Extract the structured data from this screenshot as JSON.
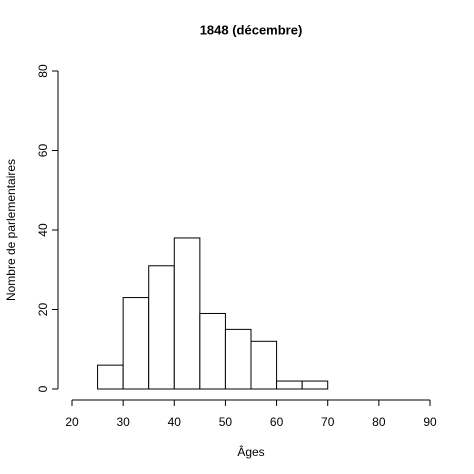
{
  "chart_data": {
    "type": "histogram",
    "title": "1848 (décembre)",
    "x_label": "Âges",
    "y_label": "Nombre de parlementaires",
    "bins": [
      20,
      25,
      30,
      35,
      40,
      45,
      50,
      55,
      60,
      65,
      70,
      75,
      80,
      85,
      90
    ],
    "values": [
      0,
      6,
      23,
      31,
      38,
      19,
      15,
      12,
      2,
      2,
      0,
      0,
      0,
      0
    ],
    "color": "#ffffff",
    "xlim": [
      20,
      90
    ],
    "xticks": [
      20,
      30,
      40,
      50,
      60,
      70,
      80,
      90
    ],
    "ylim": [
      0,
      80
    ],
    "yticks": [
      0,
      20,
      40,
      60,
      80
    ]
  }
}
